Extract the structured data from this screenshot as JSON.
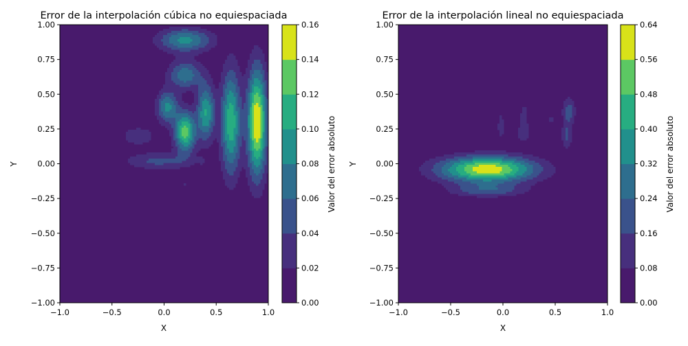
{
  "chart_data": [
    {
      "type": "heatmap",
      "subtype": "filled-contour",
      "title": "Error de la interpolación cúbica no equiespaciada",
      "xlabel": "X",
      "ylabel": "Y",
      "xlim": [
        -1.0,
        1.0
      ],
      "ylim": [
        -1.0,
        1.0
      ],
      "xticks": [
        "−1.0",
        "−0.5",
        "0.0",
        "0.5",
        "1.0"
      ],
      "yticks": [
        "−1.00",
        "−0.75",
        "−0.50",
        "−0.25",
        "0.00",
        "0.25",
        "0.50",
        "0.75",
        "1.00"
      ],
      "colorbar": {
        "label": "Valor del error absoluto",
        "levels": [
          0.0,
          0.02,
          0.04,
          0.06,
          0.08,
          0.1,
          0.12,
          0.14,
          0.16
        ],
        "tick_labels": [
          "0.00",
          "0.02",
          "0.04",
          "0.06",
          "0.08",
          "0.10",
          "0.12",
          "0.14",
          "0.16"
        ]
      },
      "blobs": [
        {
          "x": 0.2,
          "y": 0.89,
          "sx": 0.18,
          "sy": 0.06,
          "peak": 0.085
        },
        {
          "x": 0.2,
          "y": 0.64,
          "sx": 0.11,
          "sy": 0.07,
          "peak": 0.075
        },
        {
          "x": 0.03,
          "y": 0.41,
          "sx": 0.07,
          "sy": 0.08,
          "peak": 0.085
        },
        {
          "x": 0.2,
          "y": 0.23,
          "sx": 0.07,
          "sy": 0.1,
          "peak": 0.13
        },
        {
          "x": -0.25,
          "y": 0.2,
          "sx": 0.12,
          "sy": 0.05,
          "peak": 0.035
        },
        {
          "x": -0.05,
          "y": 0.02,
          "sx": 0.23,
          "sy": 0.045,
          "peak": 0.045
        },
        {
          "x": 0.4,
          "y": 0.37,
          "sx": 0.06,
          "sy": 0.14,
          "peak": 0.1
        },
        {
          "x": 0.64,
          "y": 0.3,
          "sx": 0.065,
          "sy": 0.26,
          "peak": 0.115
        },
        {
          "x": 0.89,
          "y": 0.3,
          "sx": 0.065,
          "sy": 0.27,
          "peak": 0.16
        },
        {
          "x": 0.36,
          "y": 0.02,
          "sx": 0.025,
          "sy": 0.015,
          "peak": 0.025
        },
        {
          "x": 0.19,
          "y": -0.15,
          "sx": 0.02,
          "sy": 0.012,
          "peak": 0.022
        }
      ]
    },
    {
      "type": "heatmap",
      "subtype": "filled-contour",
      "title": "Error de la interpolación lineal no equiespaciada",
      "xlabel": "X",
      "ylabel": "Y",
      "xlim": [
        -1.0,
        1.0
      ],
      "ylim": [
        -1.0,
        1.0
      ],
      "xticks": [
        "−1.0",
        "−0.5",
        "0.0",
        "0.5",
        "1.0"
      ],
      "yticks": [
        "−1.00",
        "−0.75",
        "−0.50",
        "−0.25",
        "0.00",
        "0.25",
        "0.50",
        "0.75",
        "1.00"
      ],
      "colorbar": {
        "label": "Valor del error absoluto",
        "levels": [
          0.0,
          0.08,
          0.16,
          0.24,
          0.32,
          0.4,
          0.48,
          0.56,
          0.64
        ],
        "tick_labels": [
          "0.00",
          "0.08",
          "0.16",
          "0.24",
          "0.32",
          "0.40",
          "0.48",
          "0.56",
          "0.64"
        ]
      },
      "blobs": [
        {
          "x": -0.15,
          "y": -0.04,
          "sx": 0.32,
          "sy": 0.065,
          "peak": 0.62
        },
        {
          "x": -0.15,
          "y": -0.19,
          "sx": 0.25,
          "sy": 0.035,
          "peak": 0.2
        },
        {
          "x": -0.02,
          "y": 0.27,
          "sx": 0.03,
          "sy": 0.09,
          "peak": 0.11
        },
        {
          "x": 0.2,
          "y": 0.35,
          "sx": 0.04,
          "sy": 0.09,
          "peak": 0.1
        },
        {
          "x": 0.19,
          "y": 0.21,
          "sx": 0.06,
          "sy": 0.05,
          "peak": 0.1
        },
        {
          "x": 0.46,
          "y": 0.32,
          "sx": 0.03,
          "sy": 0.02,
          "peak": 0.1
        },
        {
          "x": 0.63,
          "y": 0.38,
          "sx": 0.045,
          "sy": 0.07,
          "peak": 0.2
        },
        {
          "x": 0.61,
          "y": 0.2,
          "sx": 0.035,
          "sy": 0.07,
          "peak": 0.17
        },
        {
          "x": -0.17,
          "y": 0.31,
          "sx": 0.01,
          "sy": 0.02,
          "peak": 0.09
        }
      ]
    }
  ]
}
